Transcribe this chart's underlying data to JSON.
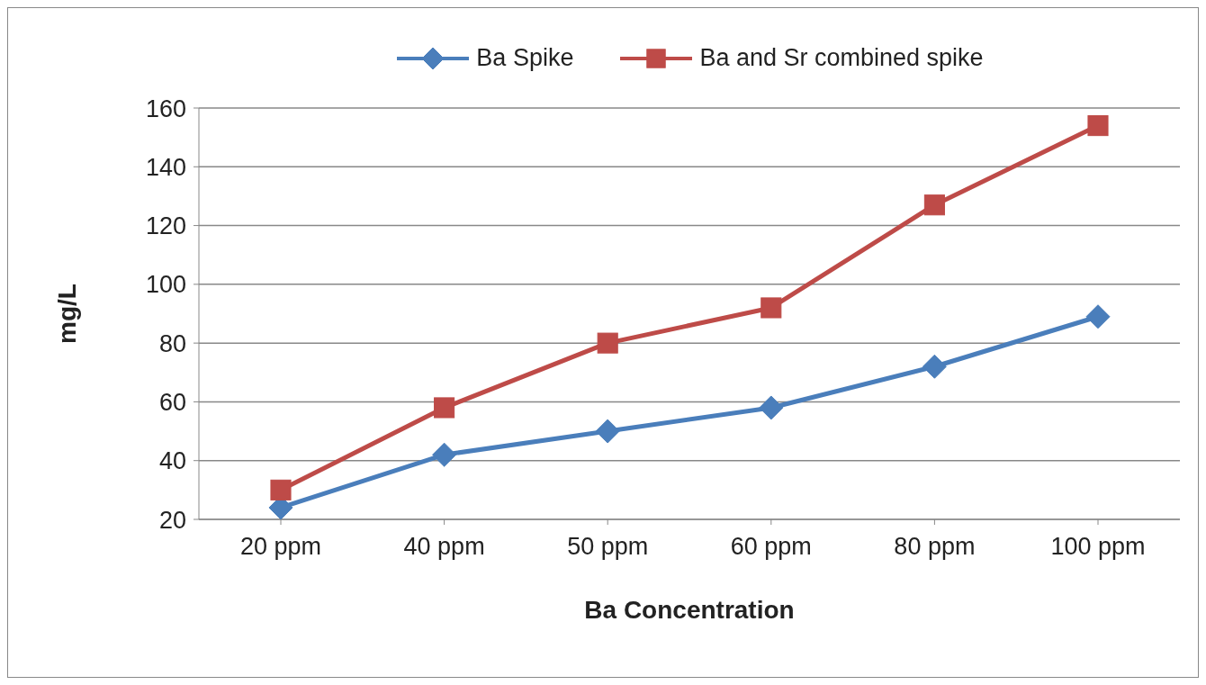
{
  "chart_data": {
    "type": "line",
    "xlabel": "Ba Concentration",
    "ylabel": "mg/L",
    "categories": [
      "20 ppm",
      "40 ppm",
      "50 ppm",
      "60 ppm",
      "80 ppm",
      "100 ppm"
    ],
    "series": [
      {
        "name": "Ba Spike",
        "color": "#4a7ebb",
        "marker": "diamond",
        "values": [
          24,
          42,
          50,
          58,
          72,
          89
        ]
      },
      {
        "name": "Ba and Sr combined spike",
        "color": "#be4b48",
        "marker": "square",
        "values": [
          30,
          58,
          80,
          92,
          127,
          154
        ]
      }
    ],
    "ylim": [
      20,
      160
    ],
    "yticks": [
      20,
      40,
      60,
      80,
      100,
      120,
      140,
      160
    ],
    "grid": "y",
    "legend": "top",
    "line_style": "solid"
  }
}
